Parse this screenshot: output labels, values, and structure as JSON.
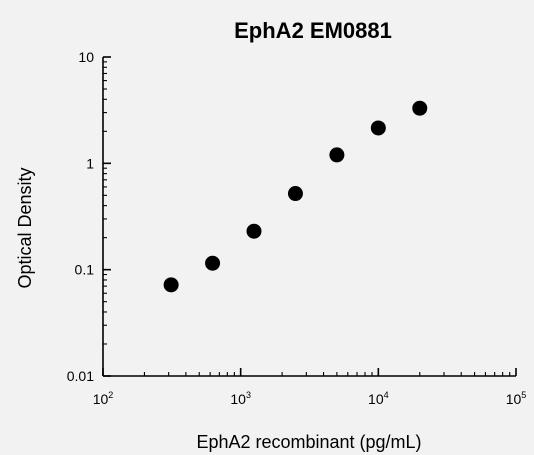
{
  "chart_data": {
    "type": "scatter",
    "title": "EphA2 EM0881",
    "xlabel": "EphA2 recombinant (pg/mL)",
    "ylabel": "Optical Density",
    "xscale": "log",
    "yscale": "log",
    "xlim": [
      100,
      100000
    ],
    "ylim": [
      0.01,
      10
    ],
    "x_ticks": [
      {
        "base": "10",
        "exp": "2"
      },
      {
        "base": "10",
        "exp": "3"
      },
      {
        "base": "10",
        "exp": "4"
      },
      {
        "base": "10",
        "exp": "5"
      }
    ],
    "y_ticks": [
      "0.01",
      "0.1",
      "1",
      "10"
    ],
    "grid": false,
    "marker_color": "#000000",
    "points": [
      {
        "x": 312.5,
        "y": 0.072
      },
      {
        "x": 625,
        "y": 0.115
      },
      {
        "x": 1250,
        "y": 0.23
      },
      {
        "x": 2500,
        "y": 0.52
      },
      {
        "x": 5000,
        "y": 1.2
      },
      {
        "x": 10000,
        "y": 2.15
      },
      {
        "x": 20000,
        "y": 3.3
      }
    ]
  }
}
